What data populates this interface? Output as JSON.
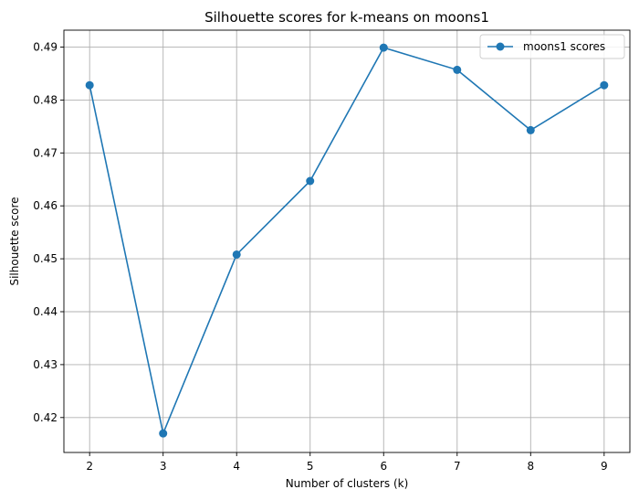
{
  "chart_data": {
    "type": "line",
    "title": "Silhouette scores for k-means on moons1",
    "xlabel": "Number of clusters (k)",
    "ylabel": "Silhouette score",
    "x": [
      2,
      3,
      4,
      5,
      6,
      7,
      8,
      9
    ],
    "series": [
      {
        "name": "moons1 scores",
        "values": [
          0.4828,
          0.417,
          0.4508,
          0.4647,
          0.4899,
          0.4857,
          0.4743,
          0.4828
        ],
        "color": "#1f77b4",
        "marker": "circle"
      }
    ],
    "xticks": [
      "2",
      "3",
      "4",
      "5",
      "6",
      "7",
      "8",
      "9"
    ],
    "yticks": [
      "0.42",
      "0.43",
      "0.44",
      "0.45",
      "0.46",
      "0.47",
      "0.48",
      "0.49"
    ],
    "xlim": [
      1.65,
      9.35
    ],
    "ylim": [
      0.4134,
      0.4932
    ],
    "grid": true,
    "legend_position": "top-right"
  }
}
